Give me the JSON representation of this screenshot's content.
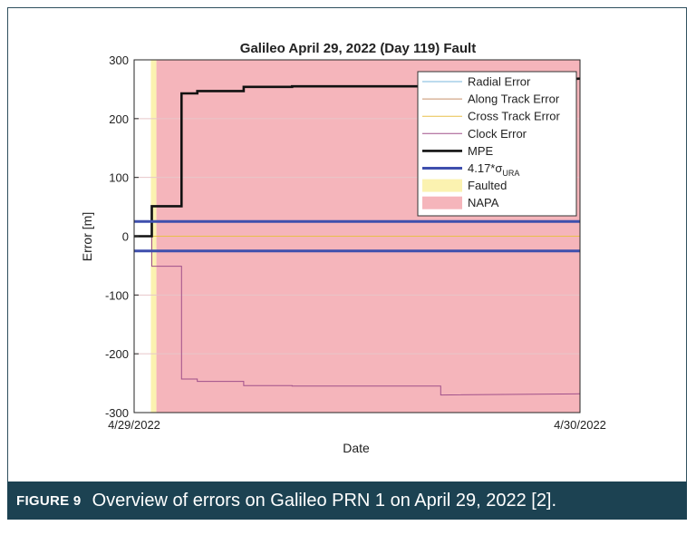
{
  "chart_data": {
    "type": "line",
    "title": "Galileo April 29, 2022 (Day 119) Fault",
    "xlabel": "Date",
    "ylabel": "Error [m]",
    "x_unit": "hours after 4/29/2022 00:00",
    "xlim": [
      0,
      24
    ],
    "ylim": [
      -300,
      300
    ],
    "xticks": [
      {
        "value": 0,
        "label": "4/29/2022"
      },
      {
        "value": 24,
        "label": "4/30/2022"
      }
    ],
    "yticks": [
      300,
      200,
      100,
      0,
      -100,
      -200,
      -300
    ],
    "grid": true,
    "legend_position": "top-right",
    "regions": [
      {
        "name": "Faulted",
        "x": [
          0.9,
          1.2
        ],
        "color": "#fbf2b0"
      },
      {
        "name": "NAPA",
        "x": [
          1.2,
          24
        ],
        "color": "#f5b5bb"
      }
    ],
    "series": [
      {
        "name": "Radial Error",
        "color": "#79b7dc",
        "width": 1,
        "x": [
          0,
          24
        ],
        "y": [
          0,
          0
        ]
      },
      {
        "name": "Along Track Error",
        "color": "#c8906a",
        "width": 1,
        "x": [
          0,
          24
        ],
        "y": [
          0,
          0
        ]
      },
      {
        "name": "Cross Track Error",
        "color": "#e8c04a",
        "width": 1,
        "x": [
          0,
          24
        ],
        "y": [
          0,
          0
        ]
      },
      {
        "name": "Clock Error",
        "color": "#a0508a",
        "width": 1,
        "x": [
          0,
          0.95,
          0.95,
          2.55,
          2.55,
          3.4,
          3.4,
          5.9,
          5.9,
          8.5,
          8.5,
          16.5,
          16.5,
          24
        ],
        "y": [
          0,
          0,
          -51,
          -51,
          -243,
          -243,
          -247,
          -247,
          -254,
          -254,
          -255,
          -255,
          -270,
          -268
        ]
      },
      {
        "name": "MPE",
        "color": "#111111",
        "width": 2.6,
        "x": [
          0,
          0.95,
          0.95,
          2.55,
          2.55,
          3.4,
          3.4,
          5.9,
          5.9,
          8.5,
          8.5,
          16.5,
          16.5,
          24
        ],
        "y": [
          0,
          0,
          51,
          51,
          243,
          243,
          247,
          247,
          254,
          254,
          255,
          255,
          256,
          268
        ]
      },
      {
        "name": "4.17*σURA (+)",
        "legend": false,
        "color": "#3e4fad",
        "width": 3,
        "x": [
          0,
          24
        ],
        "y": [
          25,
          25
        ]
      },
      {
        "name": "4.17*σURA (−)",
        "legend": false,
        "color": "#3e4fad",
        "width": 3,
        "x": [
          0,
          24
        ],
        "y": [
          -25,
          -25
        ]
      }
    ],
    "legend": [
      {
        "label": "Radial Error",
        "kind": "line",
        "color": "#79b7dc",
        "width": 1
      },
      {
        "label": "Along Track Error",
        "kind": "line",
        "color": "#c8906a",
        "width": 1
      },
      {
        "label": "Cross Track Error",
        "kind": "line",
        "color": "#e8c04a",
        "width": 1
      },
      {
        "label": "Clock Error",
        "kind": "line",
        "color": "#a0508a",
        "width": 1
      },
      {
        "label": "MPE",
        "kind": "line",
        "color": "#111111",
        "width": 2.6
      },
      {
        "label": "4.17*σURA",
        "kind": "line",
        "color": "#3e4fad",
        "width": 3,
        "sub": "URA",
        "base": "4.17*σ"
      },
      {
        "label": "Faulted",
        "kind": "patch",
        "color": "#fbf2b0"
      },
      {
        "label": "NAPA",
        "kind": "patch",
        "color": "#f5b5bb"
      }
    ]
  },
  "caption": {
    "label": "FIGURE 9",
    "text": "Overview of errors on Galileo PRN 1 on April 29, 2022 [2]."
  },
  "colors": {
    "caption_bg": "#1c4252",
    "frame_border": "#2f4f5e",
    "axis": "#262626",
    "grid": "#e7c6c9"
  }
}
